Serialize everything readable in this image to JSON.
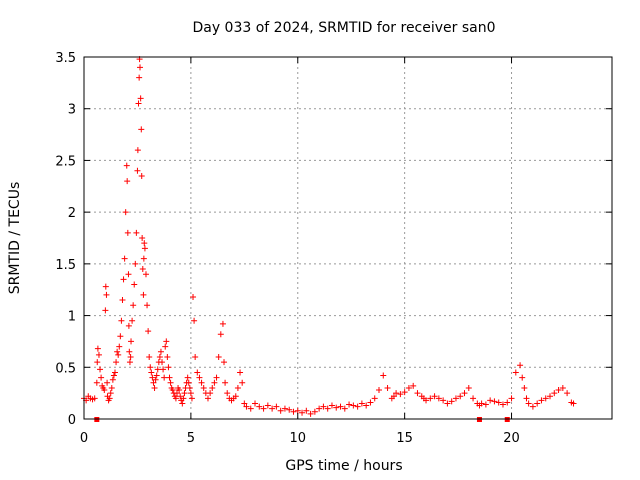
{
  "chart_data": {
    "type": "scatter",
    "title": "Day 033 of 2024, SRMTID for receiver san0",
    "xlabel": "GPS time / hours",
    "ylabel": "SRMTID / TECUs",
    "xlim": [
      0,
      24.7
    ],
    "ylim": [
      0,
      3.5
    ],
    "xticks": [
      0,
      5,
      10,
      15,
      20
    ],
    "xtick_labels": [
      "0",
      "5",
      "10",
      "15",
      "20"
    ],
    "yticks": [
      0,
      0.5,
      1,
      1.5,
      2,
      2.5,
      3,
      3.5
    ],
    "ytick_labels": [
      "0",
      "0.5",
      "1",
      "1.5",
      "2",
      "2.5",
      "3",
      "3.5"
    ],
    "grid": true,
    "marker": "+",
    "marker_color": "#ff0000",
    "series": [
      {
        "name": "SRMTID",
        "x": [
          0.0,
          0.1,
          0.2,
          0.3,
          0.4,
          0.5,
          0.6,
          0.62,
          0.65,
          0.7,
          0.75,
          0.8,
          0.85,
          0.9,
          0.95,
          1.0,
          1.02,
          1.05,
          1.08,
          1.1,
          1.15,
          1.2,
          1.25,
          1.3,
          1.35,
          1.4,
          1.45,
          1.5,
          1.55,
          1.6,
          1.65,
          1.7,
          1.75,
          1.8,
          1.85,
          1.9,
          1.95,
          2.0,
          2.02,
          2.05,
          2.08,
          2.1,
          2.12,
          2.15,
          2.18,
          2.2,
          2.25,
          2.3,
          2.35,
          2.4,
          2.45,
          2.5,
          2.52,
          2.55,
          2.58,
          2.6,
          2.62,
          2.65,
          2.68,
          2.7,
          2.72,
          2.75,
          2.78,
          2.8,
          2.82,
          2.85,
          2.9,
          2.95,
          3.0,
          3.05,
          3.1,
          3.15,
          3.2,
          3.25,
          3.3,
          3.35,
          3.4,
          3.45,
          3.5,
          3.55,
          3.6,
          3.65,
          3.7,
          3.75,
          3.8,
          3.85,
          3.9,
          3.95,
          4.0,
          4.05,
          4.1,
          4.15,
          4.2,
          4.25,
          4.3,
          4.35,
          4.4,
          4.45,
          4.5,
          4.55,
          4.6,
          4.65,
          4.7,
          4.75,
          4.8,
          4.85,
          4.9,
          4.95,
          5.0,
          5.05,
          5.1,
          5.15,
          5.2,
          5.3,
          5.4,
          5.5,
          5.6,
          5.7,
          5.8,
          5.9,
          6.0,
          6.1,
          6.2,
          6.3,
          6.4,
          6.5,
          6.55,
          6.6,
          6.7,
          6.8,
          6.9,
          7.0,
          7.1,
          7.2,
          7.3,
          7.4,
          7.5,
          7.6,
          7.8,
          8.0,
          8.2,
          8.4,
          8.6,
          8.8,
          9.0,
          9.2,
          9.4,
          9.6,
          9.8,
          10.0,
          10.2,
          10.4,
          10.6,
          10.8,
          11.0,
          11.2,
          11.4,
          11.6,
          11.8,
          12.0,
          12.2,
          12.4,
          12.6,
          12.8,
          13.0,
          13.2,
          13.4,
          13.6,
          13.8,
          14.0,
          14.2,
          14.4,
          14.5,
          14.6,
          14.8,
          15.0,
          15.2,
          15.4,
          15.6,
          15.8,
          15.9,
          16.0,
          16.2,
          16.4,
          16.6,
          16.8,
          17.0,
          17.2,
          17.4,
          17.6,
          17.8,
          18.0,
          18.2,
          18.4,
          18.5,
          18.6,
          18.8,
          19.0,
          19.2,
          19.4,
          19.6,
          19.8,
          20.0,
          20.2,
          20.4,
          20.5,
          20.6,
          20.7,
          20.8,
          21.0,
          21.2,
          21.4,
          21.6,
          21.8,
          22.0,
          22.2,
          22.4,
          22.6,
          22.8,
          22.9
        ],
        "y": [
          0.2,
          0.18,
          0.22,
          0.2,
          0.19,
          0.2,
          0.35,
          0.55,
          0.68,
          0.62,
          0.48,
          0.4,
          0.32,
          0.3,
          0.28,
          1.05,
          1.28,
          1.2,
          0.35,
          0.22,
          0.18,
          0.2,
          0.25,
          0.3,
          0.38,
          0.42,
          0.45,
          0.55,
          0.65,
          0.62,
          0.7,
          0.8,
          0.95,
          1.15,
          1.35,
          1.55,
          2.0,
          2.45,
          2.3,
          1.8,
          1.4,
          0.9,
          0.65,
          0.55,
          0.6,
          0.75,
          0.95,
          1.1,
          1.3,
          1.5,
          1.8,
          2.4,
          2.6,
          3.05,
          3.3,
          3.48,
          3.4,
          3.1,
          2.8,
          2.35,
          1.75,
          1.45,
          1.2,
          1.55,
          1.7,
          1.65,
          1.4,
          1.1,
          0.85,
          0.6,
          0.5,
          0.45,
          0.4,
          0.35,
          0.3,
          0.38,
          0.42,
          0.48,
          0.55,
          0.6,
          0.65,
          0.55,
          0.48,
          0.4,
          0.7,
          0.75,
          0.6,
          0.5,
          0.4,
          0.35,
          0.3,
          0.28,
          0.25,
          0.22,
          0.2,
          0.25,
          0.3,
          0.28,
          0.22,
          0.18,
          0.15,
          0.2,
          0.25,
          0.3,
          0.35,
          0.4,
          0.35,
          0.3,
          0.25,
          0.2,
          1.18,
          0.95,
          0.6,
          0.45,
          0.4,
          0.35,
          0.3,
          0.25,
          0.2,
          0.25,
          0.3,
          0.35,
          0.4,
          0.6,
          0.82,
          0.92,
          0.55,
          0.35,
          0.25,
          0.2,
          0.18,
          0.2,
          0.22,
          0.3,
          0.45,
          0.35,
          0.15,
          0.12,
          0.1,
          0.15,
          0.12,
          0.1,
          0.13,
          0.1,
          0.12,
          0.08,
          0.1,
          0.09,
          0.07,
          0.08,
          0.06,
          0.08,
          0.05,
          0.07,
          0.1,
          0.12,
          0.1,
          0.13,
          0.11,
          0.12,
          0.1,
          0.14,
          0.13,
          0.12,
          0.15,
          0.13,
          0.16,
          0.2,
          0.28,
          0.42,
          0.3,
          0.2,
          0.22,
          0.25,
          0.24,
          0.26,
          0.3,
          0.32,
          0.25,
          0.22,
          0.2,
          0.18,
          0.2,
          0.22,
          0.2,
          0.18,
          0.15,
          0.17,
          0.2,
          0.22,
          0.25,
          0.3,
          0.2,
          0.15,
          0.13,
          0.15,
          0.14,
          0.18,
          0.17,
          0.16,
          0.14,
          0.16,
          0.2,
          0.45,
          0.52,
          0.4,
          0.3,
          0.2,
          0.15,
          0.12,
          0.15,
          0.18,
          0.2,
          0.22,
          0.25,
          0.28,
          0.3,
          0.25,
          0.16,
          0.15
        ]
      }
    ],
    "edge_markers_x": [
      0.6,
      18.5,
      19.8
    ]
  }
}
